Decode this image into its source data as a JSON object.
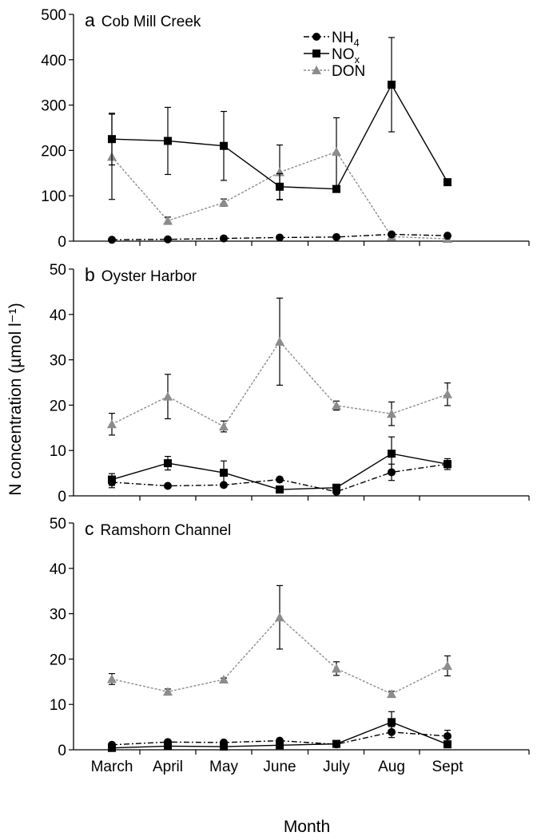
{
  "chart_data": {
    "type": "line",
    "ylabel": "N concentration (µmol l⁻¹)",
    "xlabel": "Month",
    "categories": [
      "March",
      "April",
      "May",
      "June",
      "July",
      "Aug",
      "Sept"
    ],
    "legend": {
      "placement": "top-center of panel a",
      "entries": [
        {
          "key": "nh4",
          "base": "NH",
          "sub": "4",
          "marker": "circle",
          "color": "#000000",
          "dash": "dash-dot"
        },
        {
          "key": "nox",
          "base": "NO",
          "sub": "x",
          "marker": "square",
          "color": "#000000",
          "dash": "solid"
        },
        {
          "key": "don",
          "base": "DON",
          "sub": "",
          "marker": "triangle",
          "color": "#8c8c8c",
          "dash": "dotted"
        }
      ]
    },
    "panels": [
      {
        "letter": "a",
        "title": "Cob Mill Creek",
        "ylim": [
          0,
          500
        ],
        "yticks": [
          0,
          100,
          200,
          300,
          400,
          500
        ],
        "series": [
          {
            "key": "nh4",
            "values": [
              3,
              4,
              6,
              8,
              9,
              15,
              12
            ],
            "errors": [
              0,
              0,
              0,
              0,
              0,
              0,
              0
            ]
          },
          {
            "key": "nox",
            "values": [
              225,
              221,
              210,
              120,
              115,
              345,
              130
            ],
            "errors": [
              57,
              74,
              76,
              29,
              0,
              104,
              0
            ]
          },
          {
            "key": "don",
            "values": [
              186,
              45,
              85,
              152,
              197,
              10,
              5
            ],
            "errors": [
              94,
              8,
              8,
              60,
              75,
              0,
              0
            ]
          }
        ]
      },
      {
        "letter": "b",
        "title": "Oyster Harbor",
        "ylim": [
          0,
          50
        ],
        "yticks": [
          0,
          10,
          20,
          30,
          40,
          50
        ],
        "series": [
          {
            "key": "nh4",
            "values": [
              3.0,
              2.2,
              2.4,
              3.6,
              0.9,
              5.2,
              7.0
            ],
            "errors": [
              1.2,
              0,
              0,
              0,
              0,
              1.8,
              0.8
            ]
          },
          {
            "key": "nox",
            "values": [
              3.6,
              7.2,
              5.1,
              1.4,
              1.8,
              9.3,
              7.0
            ],
            "errors": [
              1.3,
              1.5,
              2.6,
              0,
              0,
              3.7,
              1.2
            ]
          },
          {
            "key": "don",
            "values": [
              15.8,
              21.9,
              15.3,
              34.0,
              19.9,
              18.1,
              22.4
            ],
            "errors": [
              2.4,
              4.9,
              1.2,
              9.6,
              1.0,
              2.6,
              2.5
            ]
          }
        ]
      },
      {
        "letter": "c",
        "title": "Ramshorn Channel",
        "ylim": [
          0,
          50
        ],
        "yticks": [
          0,
          10,
          20,
          30,
          40,
          50
        ],
        "series": [
          {
            "key": "nh4",
            "values": [
              1.1,
              1.7,
              1.6,
              2.0,
              1.2,
              3.9,
              3.0
            ],
            "errors": [
              0,
              0,
              0,
              0,
              0,
              1.2,
              1.3
            ]
          },
          {
            "key": "nox",
            "values": [
              0.4,
              0.8,
              0.7,
              1.0,
              1.3,
              6.1,
              1.2
            ],
            "errors": [
              0,
              0,
              0,
              0,
              0,
              2.3,
              0
            ]
          },
          {
            "key": "don",
            "values": [
              15.6,
              12.8,
              15.5,
              29.2,
              17.9,
              12.3,
              18.5
            ],
            "errors": [
              1.2,
              0.6,
              0.3,
              7.0,
              1.5,
              0.6,
              2.2
            ]
          }
        ]
      }
    ]
  }
}
